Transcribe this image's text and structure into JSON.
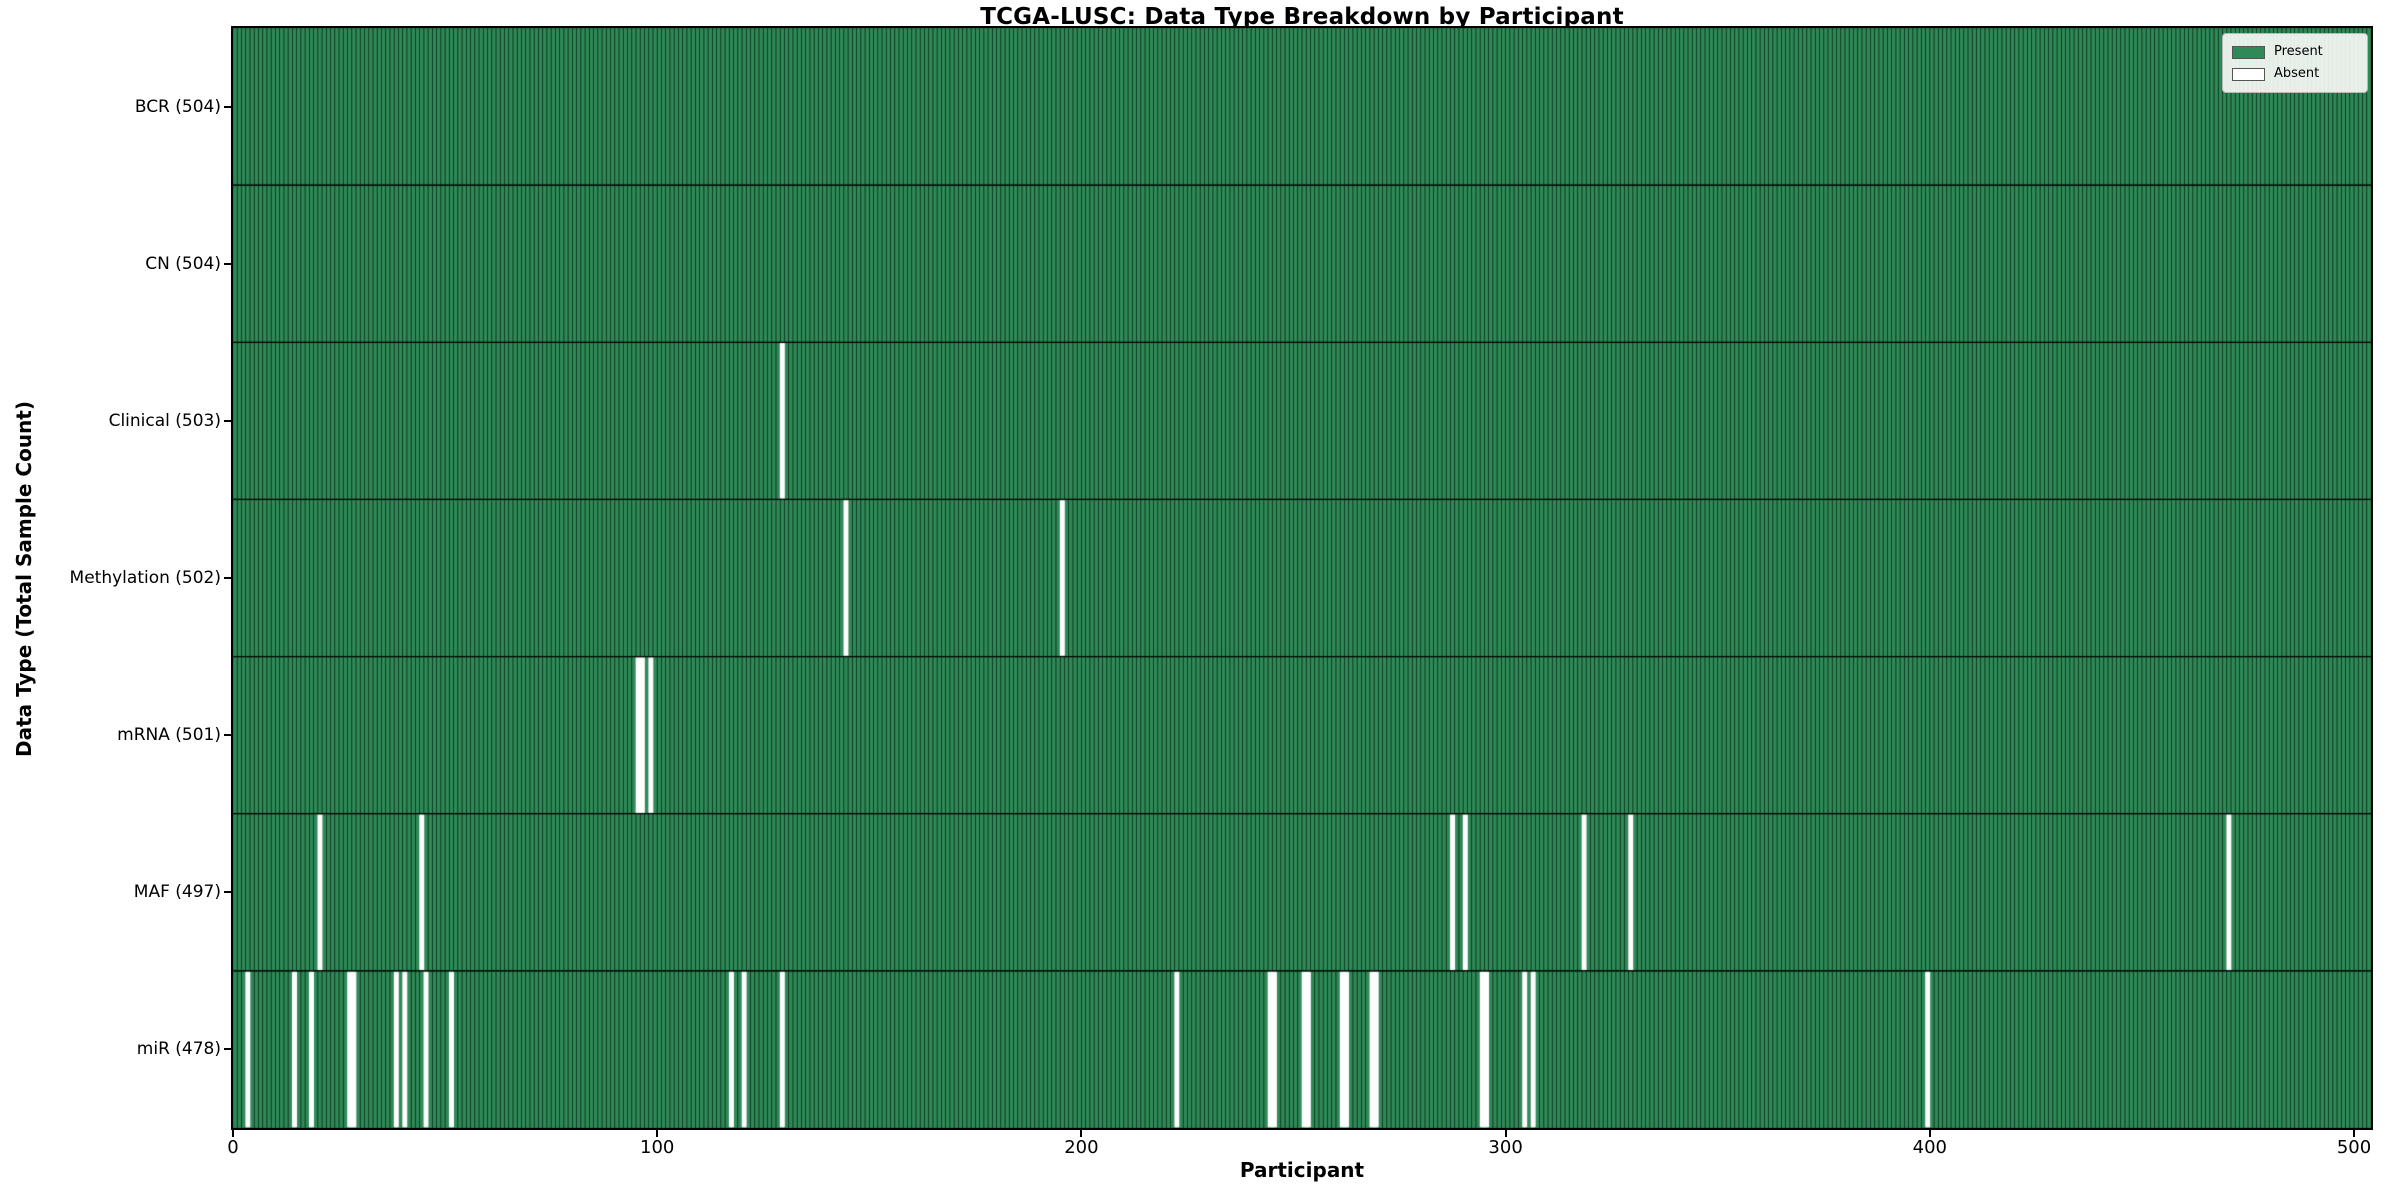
{
  "chart_data": {
    "type": "heatmap",
    "title": "TCGA-LUSC: Data Type Breakdown by Participant",
    "xlabel": "Participant",
    "ylabel": "Data Type (Total Sample Count)",
    "x_ticks": [
      0,
      100,
      200,
      300,
      400,
      500
    ],
    "x_axis_range": [
      0,
      504
    ],
    "n_participants": 504,
    "grid": false,
    "legend_position": "upper right",
    "legend": [
      {
        "label": "Present",
        "color": "#2e8b57"
      },
      {
        "label": "Absent",
        "color": "#ffffff"
      }
    ],
    "colors": {
      "present": "#2e8b57",
      "absent": "#ffffff",
      "bar_edge": "rgba(0,0,0,0.5)",
      "row_separator": "#000000"
    },
    "rows": [
      {
        "name": "BCR",
        "label": "BCR (504)",
        "total": 504,
        "absent_participants": []
      },
      {
        "name": "CN",
        "label": "CN (504)",
        "total": 504,
        "absent_participants": []
      },
      {
        "name": "Clinical",
        "label": "Clinical (503)",
        "total": 503,
        "absent_participants": [
          129
        ]
      },
      {
        "name": "Methylation",
        "label": "Methylation (502)",
        "total": 502,
        "absent_participants": [
          144,
          195
        ]
      },
      {
        "name": "mRNA",
        "label": "mRNA (501)",
        "total": 501,
        "absent_participants": [
          95,
          96,
          98
        ]
      },
      {
        "name": "MAF",
        "label": "MAF (497)",
        "total": 497,
        "absent_participants": [
          20,
          44,
          287,
          290,
          318,
          329,
          470
        ]
      },
      {
        "name": "miR",
        "label": "miR (478)",
        "total": 478,
        "absent_participants": [
          3,
          14,
          18,
          27,
          28,
          38,
          40,
          45,
          51,
          117,
          120,
          129,
          222,
          244,
          245,
          252,
          253,
          261,
          262,
          268,
          269,
          294,
          295,
          304,
          306,
          399
        ]
      }
    ]
  }
}
